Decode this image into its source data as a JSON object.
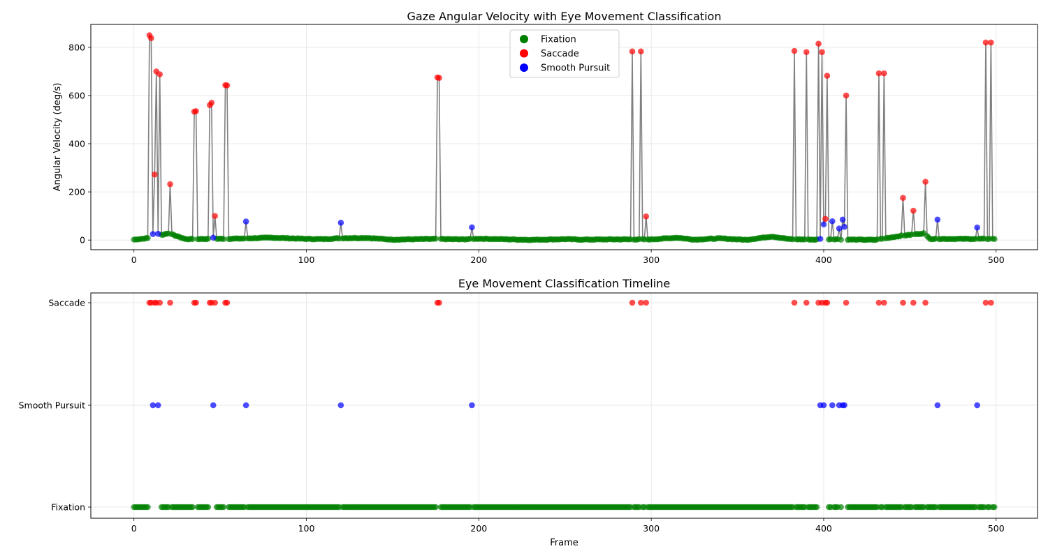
{
  "chart_data": [
    {
      "type": "line",
      "title": "Gaze Angular Velocity with Eye Movement Classification",
      "xlabel": "",
      "ylabel": "Angular Velocity (deg/s)",
      "xlim": [
        -25,
        524
      ],
      "ylim": [
        -40,
        895
      ],
      "xticks": [
        0,
        100,
        200,
        300,
        400,
        500
      ],
      "yticks": [
        0,
        200,
        400,
        600,
        800
      ],
      "grid": true,
      "legend": {
        "placement": "top-center",
        "entries": [
          {
            "label": "Fixation",
            "color": "#008000"
          },
          {
            "label": "Saccade",
            "color": "#ff0000"
          },
          {
            "label": "Smooth Pursuit",
            "color": "#0000ff"
          }
        ]
      },
      "line_color": "#808080",
      "baseline": {
        "x_range": [
          0,
          499
        ],
        "anchors": [
          [
            0,
            2
          ],
          [
            8,
            8
          ],
          [
            20,
            28
          ],
          [
            30,
            4
          ],
          [
            60,
            6
          ],
          [
            80,
            10
          ],
          [
            100,
            5
          ],
          [
            110,
            4
          ],
          [
            120,
            8
          ],
          [
            135,
            9
          ],
          [
            150,
            2
          ],
          [
            175,
            5
          ],
          [
            190,
            3
          ],
          [
            200,
            6
          ],
          [
            230,
            1
          ],
          [
            250,
            4
          ],
          [
            260,
            2
          ],
          [
            280,
            3
          ],
          [
            300,
            3
          ],
          [
            315,
            10
          ],
          [
            325,
            2
          ],
          [
            340,
            7
          ],
          [
            355,
            1
          ],
          [
            370,
            15
          ],
          [
            380,
            4
          ],
          [
            395,
            2
          ],
          [
            405,
            4
          ],
          [
            415,
            2
          ],
          [
            430,
            1
          ],
          [
            445,
            18
          ],
          [
            458,
            28
          ],
          [
            462,
            5
          ],
          [
            499,
            5
          ]
        ]
      },
      "classes": {
        "Saccade": {
          "x": [
            9,
            10,
            12,
            13,
            15,
            21,
            35,
            36,
            44,
            45,
            47,
            53,
            54,
            176,
            177,
            289,
            294,
            297,
            383,
            390,
            397,
            399,
            401,
            402,
            413,
            432,
            435,
            446,
            452,
            459,
            494,
            497
          ],
          "y": [
            850,
            838,
            272,
            700,
            688,
            232,
            533,
            535,
            560,
            570,
            100,
            643,
            642,
            675,
            673,
            783,
            783,
            98,
            785,
            780,
            815,
            780,
            88,
            682,
            600,
            692,
            692,
            175,
            122,
            242,
            820,
            820
          ]
        },
        "Smooth Pursuit": {
          "x": [
            11,
            14,
            46,
            65,
            120,
            196,
            398,
            400,
            405,
            409,
            411,
            412,
            466,
            489
          ],
          "y": [
            25,
            26,
            10,
            77,
            72,
            53,
            5,
            65,
            78,
            48,
            85,
            55,
            85,
            52
          ]
        },
        "Fixation": {
          "x_range": [
            0,
            499
          ],
          "note_excluded": "all frames not listed as Saccade or Smooth Pursuit"
        }
      }
    },
    {
      "type": "scatter",
      "title": "Eye Movement Classification Timeline",
      "xlabel": "Frame",
      "ylabel": "",
      "xlim": [
        -25,
        524
      ],
      "categories": [
        "Fixation",
        "Smooth Pursuit",
        "Saccade"
      ],
      "xticks": [
        0,
        100,
        200,
        300,
        400,
        500
      ],
      "grid": true,
      "colors": {
        "Fixation": "#008000",
        "Saccade": "#ff0000",
        "Smooth Pursuit": "#0000ff"
      }
    }
  ]
}
